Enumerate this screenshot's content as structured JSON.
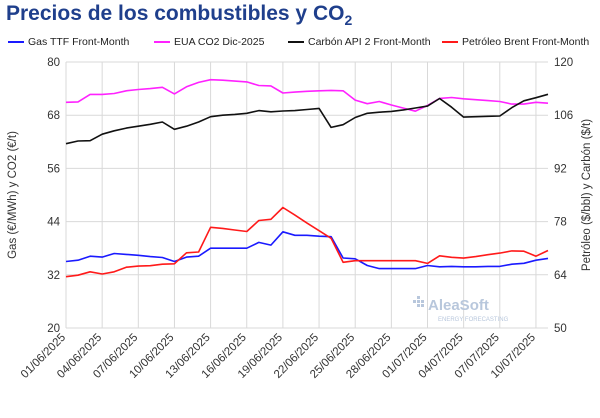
{
  "title": "Precios de los combustibles y CO",
  "title_sub": "2",
  "watermark": {
    "brand": "AleaSoft",
    "tagline": "ENERGY FORECASTING"
  },
  "colors": {
    "gas": "#1a1aff",
    "co2": "#ff22ff",
    "coal": "#111111",
    "brent": "#ff1a1a",
    "grid": "#d9d9d9",
    "axis_text": "#333333",
    "title": "#1f3f8c"
  },
  "chart_data": {
    "type": "line",
    "title": "Precios de los combustibles y CO2",
    "x": [
      "01/06/2025",
      "02/06/2025",
      "03/06/2025",
      "04/06/2025",
      "05/06/2025",
      "06/06/2025",
      "07/06/2025",
      "08/06/2025",
      "09/06/2025",
      "10/06/2025",
      "11/06/2025",
      "12/06/2025",
      "13/06/2025",
      "14/06/2025",
      "15/06/2025",
      "16/06/2025",
      "17/06/2025",
      "18/06/2025",
      "19/06/2025",
      "20/06/2025",
      "21/06/2025",
      "22/06/2025",
      "23/06/2025",
      "24/06/2025",
      "25/06/2025",
      "26/06/2025",
      "27/06/2025",
      "28/06/2025",
      "29/06/2025",
      "30/06/2025",
      "01/07/2025",
      "02/07/2025",
      "03/07/2025",
      "04/07/2025",
      "05/07/2025",
      "06/07/2025",
      "07/07/2025",
      "08/07/2025",
      "09/07/2025",
      "10/07/2025",
      "11/07/2025"
    ],
    "x_tick_labels": [
      "01/06/2025",
      "04/06/2025",
      "07/06/2025",
      "10/06/2025",
      "13/06/2025",
      "16/06/2025",
      "19/06/2025",
      "22/06/2025",
      "25/06/2025",
      "28/06/2025",
      "01/07/2025",
      "04/07/2025",
      "07/07/2025",
      "10/07/2025"
    ],
    "ylabel_left": "Gas (€/MWh) y CO2 (€/t)",
    "ylabel_right": "Petróleo ($/bbl) y Carbón ($/t)",
    "ylim_left": [
      20,
      80
    ],
    "ylim_right": [
      50,
      120
    ],
    "yticks_left": [
      20,
      32,
      44,
      56,
      68,
      80
    ],
    "yticks_right": [
      50,
      64,
      78,
      92,
      106,
      120
    ],
    "grid": true,
    "legend_position": "top",
    "series": [
      {
        "name": "Gas TTF Front-Month",
        "axis": "left",
        "color_key": "gas",
        "values": [
          35.0,
          35.3,
          36.2,
          36.0,
          36.8,
          36.6,
          36.4,
          36.1,
          35.9,
          35.0,
          36.0,
          36.2,
          38.0,
          38.0,
          38.0,
          38.0,
          39.3,
          38.7,
          41.7,
          40.9,
          40.9,
          40.7,
          40.6,
          35.8,
          35.6,
          34.1,
          33.4,
          33.4,
          33.4,
          33.4,
          34.1,
          33.8,
          33.9,
          33.8,
          33.8,
          33.9,
          33.9,
          34.4,
          34.6,
          35.3,
          35.7
        ]
      },
      {
        "name": "EUA CO2 Dic-2025",
        "axis": "left",
        "color_key": "co2",
        "values": [
          70.9,
          71.0,
          72.7,
          72.7,
          72.9,
          73.5,
          73.8,
          74.0,
          74.3,
          72.8,
          74.4,
          75.4,
          76.0,
          75.9,
          75.7,
          75.5,
          74.7,
          74.6,
          73.0,
          73.2,
          73.4,
          73.5,
          73.6,
          73.5,
          71.4,
          70.6,
          71.1,
          70.3,
          69.6,
          68.9,
          70.2,
          71.8,
          72.0,
          71.7,
          71.5,
          71.3,
          71.1,
          70.5,
          70.5,
          70.9,
          70.7
        ]
      },
      {
        "name": "Carbón API 2 Front-Month",
        "axis": "right",
        "color_key": "coal",
        "values": [
          98.5,
          99.2,
          99.3,
          101.0,
          101.9,
          102.6,
          103.1,
          103.6,
          104.2,
          102.3,
          103.1,
          104.2,
          105.6,
          106.0,
          106.2,
          106.5,
          107.2,
          106.9,
          107.1,
          107.2,
          107.5,
          107.8,
          102.8,
          103.5,
          105.4,
          106.5,
          106.8,
          107.0,
          107.4,
          107.9,
          108.4,
          110.4,
          108.1,
          105.5,
          105.6,
          105.7,
          105.8,
          108.0,
          109.8,
          110.6,
          111.5
        ]
      },
      {
        "name": "Petróleo Brent Front-Month",
        "axis": "right",
        "color_key": "brent",
        "values": [
          63.5,
          63.9,
          64.8,
          64.2,
          64.8,
          66.0,
          66.3,
          66.4,
          66.8,
          66.9,
          69.8,
          70.0,
          76.5,
          76.2,
          75.8,
          75.4,
          78.3,
          78.6,
          81.7,
          79.7,
          77.6,
          75.6,
          73.6,
          67.3,
          67.7,
          67.7,
          67.7,
          67.7,
          67.7,
          67.7,
          67.0,
          69.0,
          68.6,
          68.4,
          68.8,
          69.3,
          69.7,
          70.3,
          70.2,
          68.9,
          70.4
        ]
      }
    ]
  }
}
